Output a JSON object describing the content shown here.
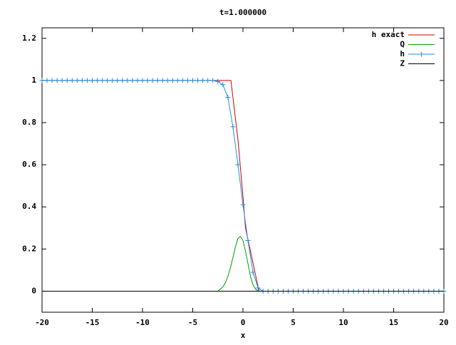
{
  "chart_data": {
    "type": "line",
    "title": "t=1.000000",
    "x_label": "x",
    "xlim": [
      -20,
      20
    ],
    "ylim": [
      -0.1,
      1.25
    ],
    "xticks": [
      -20,
      -15,
      -10,
      -5,
      0,
      5,
      10,
      15,
      20
    ],
    "yticks": [
      0,
      0.2,
      0.4,
      0.6,
      0.8,
      1,
      1.2
    ],
    "legend": "top-right",
    "series": [
      {
        "name": "h exact",
        "color": "#d00000",
        "x": [
          -20,
          -1.2,
          -0.5,
          0,
          0.25,
          1.6,
          20
        ],
        "values": [
          1,
          1,
          0.72,
          0.45,
          0.3,
          0,
          0
        ]
      },
      {
        "name": "Q",
        "color": "#00a000",
        "x": [
          -2.5,
          -2.25,
          -2,
          -1.75,
          -1.5,
          -1.25,
          -1,
          -0.75,
          -0.5,
          -0.25,
          0,
          0.25,
          0.5,
          0.75,
          1,
          1.25,
          1.5,
          1.75,
          2
        ],
        "values": [
          0,
          0.01,
          0.02,
          0.04,
          0.07,
          0.11,
          0.16,
          0.21,
          0.25,
          0.26,
          0.24,
          0.19,
          0.13,
          0.07,
          0.03,
          0.01,
          0,
          0,
          0
        ]
      },
      {
        "name": "h",
        "color": "#2090e0",
        "marker": "+",
        "x": [
          -20,
          -19.5,
          -19,
          -18.5,
          -18,
          -17.5,
          -17,
          -16.5,
          -16,
          -15.5,
          -15,
          -14.5,
          -14,
          -13.5,
          -13,
          -12.5,
          -12,
          -11.5,
          -11,
          -10.5,
          -10,
          -9.5,
          -9,
          -8.5,
          -8,
          -7.5,
          -7,
          -6.5,
          -6,
          -5.5,
          -5,
          -4.5,
          -4,
          -3.5,
          -3,
          -2.5,
          -2,
          -1.5,
          -1,
          -0.5,
          0,
          0.5,
          1,
          1.5,
          2,
          2.5,
          3,
          3.5,
          4,
          4.5,
          5,
          5.5,
          6,
          6.5,
          7,
          7.5,
          8,
          8.5,
          9,
          9.5,
          10,
          10.5,
          11,
          11.5,
          12,
          12.5,
          13,
          13.5,
          14,
          14.5,
          15,
          15.5,
          16,
          16.5,
          17,
          17.5,
          18,
          18.5,
          19,
          19.5,
          20
        ],
        "values": [
          1,
          1,
          1,
          1,
          1,
          1,
          1,
          1,
          1,
          1,
          1,
          1,
          1,
          1,
          1,
          1,
          1,
          1,
          1,
          1,
          1,
          1,
          1,
          1,
          1,
          1,
          1,
          1,
          1,
          1,
          1,
          1,
          1,
          1,
          1,
          0.995,
          0.98,
          0.92,
          0.78,
          0.6,
          0.41,
          0.24,
          0.09,
          0.015,
          0,
          0,
          0,
          0,
          0,
          0,
          0,
          0,
          0,
          0,
          0,
          0,
          0,
          0,
          0,
          0,
          0,
          0,
          0,
          0,
          0,
          0,
          0,
          0,
          0,
          0,
          0,
          0,
          0,
          0,
          0,
          0,
          0,
          0,
          0,
          0,
          0
        ]
      },
      {
        "name": "Z",
        "color": "#000000",
        "x": [
          -20,
          20
        ],
        "values": [
          0,
          0
        ]
      }
    ]
  }
}
